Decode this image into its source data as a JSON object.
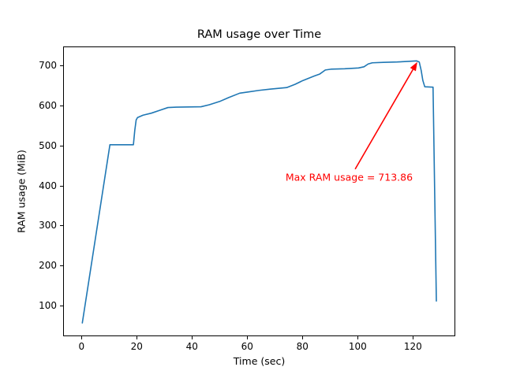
{
  "chart_data": {
    "type": "line",
    "title": "RAM usage over Time",
    "xlabel": "Time (sec)",
    "ylabel": "RAM usage (MiB)",
    "xlim": [
      -6.66,
      135.34
    ],
    "ylim": [
      22.7,
      747.9
    ],
    "x_ticks": [
      0,
      20,
      40,
      60,
      80,
      100,
      120
    ],
    "y_ticks": [
      100,
      200,
      300,
      400,
      500,
      600,
      700
    ],
    "grid": false,
    "legend": null,
    "line_color": "#1f77b4",
    "series": [
      {
        "name": "RAM usage",
        "points": [
          [
            0,
            58
          ],
          [
            10,
            504
          ],
          [
            18.5,
            504
          ],
          [
            19,
            540
          ],
          [
            19.5,
            566
          ],
          [
            20,
            572
          ],
          [
            22,
            578
          ],
          [
            25,
            583
          ],
          [
            28,
            590
          ],
          [
            31,
            597
          ],
          [
            34,
            598
          ],
          [
            43,
            599
          ],
          [
            46,
            604
          ],
          [
            50,
            613
          ],
          [
            53,
            622
          ],
          [
            57,
            633
          ],
          [
            60,
            636
          ],
          [
            64,
            640
          ],
          [
            68,
            643
          ],
          [
            71,
            645
          ],
          [
            74,
            647
          ],
          [
            77,
            655
          ],
          [
            80,
            665
          ],
          [
            84,
            676
          ],
          [
            86,
            681
          ],
          [
            88,
            691
          ],
          [
            90,
            693
          ],
          [
            95,
            694
          ],
          [
            100,
            696
          ],
          [
            102,
            699
          ],
          [
            103.5,
            706
          ],
          [
            105,
            709
          ],
          [
            109,
            710
          ],
          [
            114,
            711
          ],
          [
            118,
            712.5
          ],
          [
            121,
            713.86
          ],
          [
            122,
            711
          ],
          [
            122.7,
            690
          ],
          [
            123.3,
            665
          ],
          [
            124,
            649
          ],
          [
            127,
            648
          ],
          [
            128.2,
            113
          ]
        ]
      }
    ],
    "max_value": 713.86,
    "annotation": {
      "text": "Max RAM usage = 713.86",
      "color": "#ff0000",
      "arrow_tip": [
        121.3,
        711
      ],
      "arrow_tail": [
        98.8,
        443
      ],
      "text_center": [
        96.9,
        420
      ]
    }
  }
}
